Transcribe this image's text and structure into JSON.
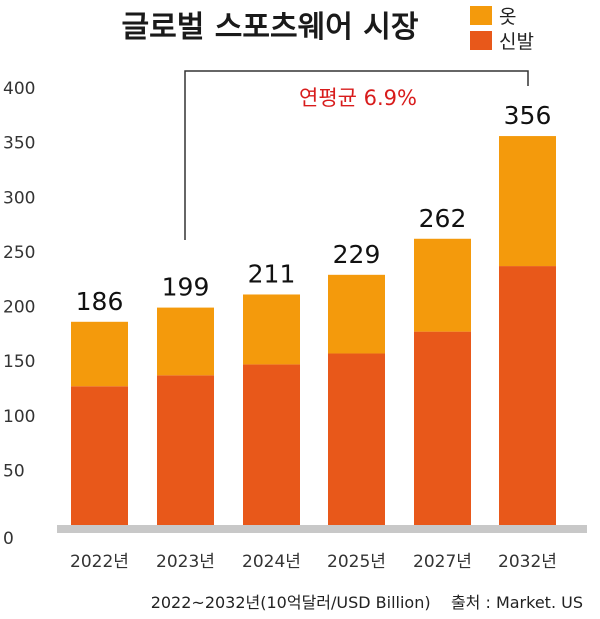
{
  "chart_data": {
    "type": "bar",
    "stacked": true,
    "title": "글로벌 스포츠웨어 시장",
    "categories": [
      "2022년",
      "2023년",
      "2024년",
      "2025년",
      "2027년",
      "2032년"
    ],
    "series": [
      {
        "name": "신발",
        "color": "#e8581a",
        "values": [
          127,
          137,
          147,
          157,
          177,
          237
        ]
      },
      {
        "name": "옷",
        "color": "#f49a0c",
        "values": [
          59,
          62,
          64,
          72,
          85,
          119
        ]
      }
    ],
    "totals": [
      "186",
      "199",
      "211",
      "229",
      "262",
      "356"
    ],
    "ylim": [
      0,
      400
    ],
    "yticks": [
      "0",
      "50",
      "100",
      "150",
      "200",
      "250",
      "300",
      "350",
      "400"
    ],
    "legend_position": "top-right",
    "annotation": "연평균 6.9%",
    "footer": "2022~2032년(10억달러/USD Billion)    출처 : Market. US"
  }
}
